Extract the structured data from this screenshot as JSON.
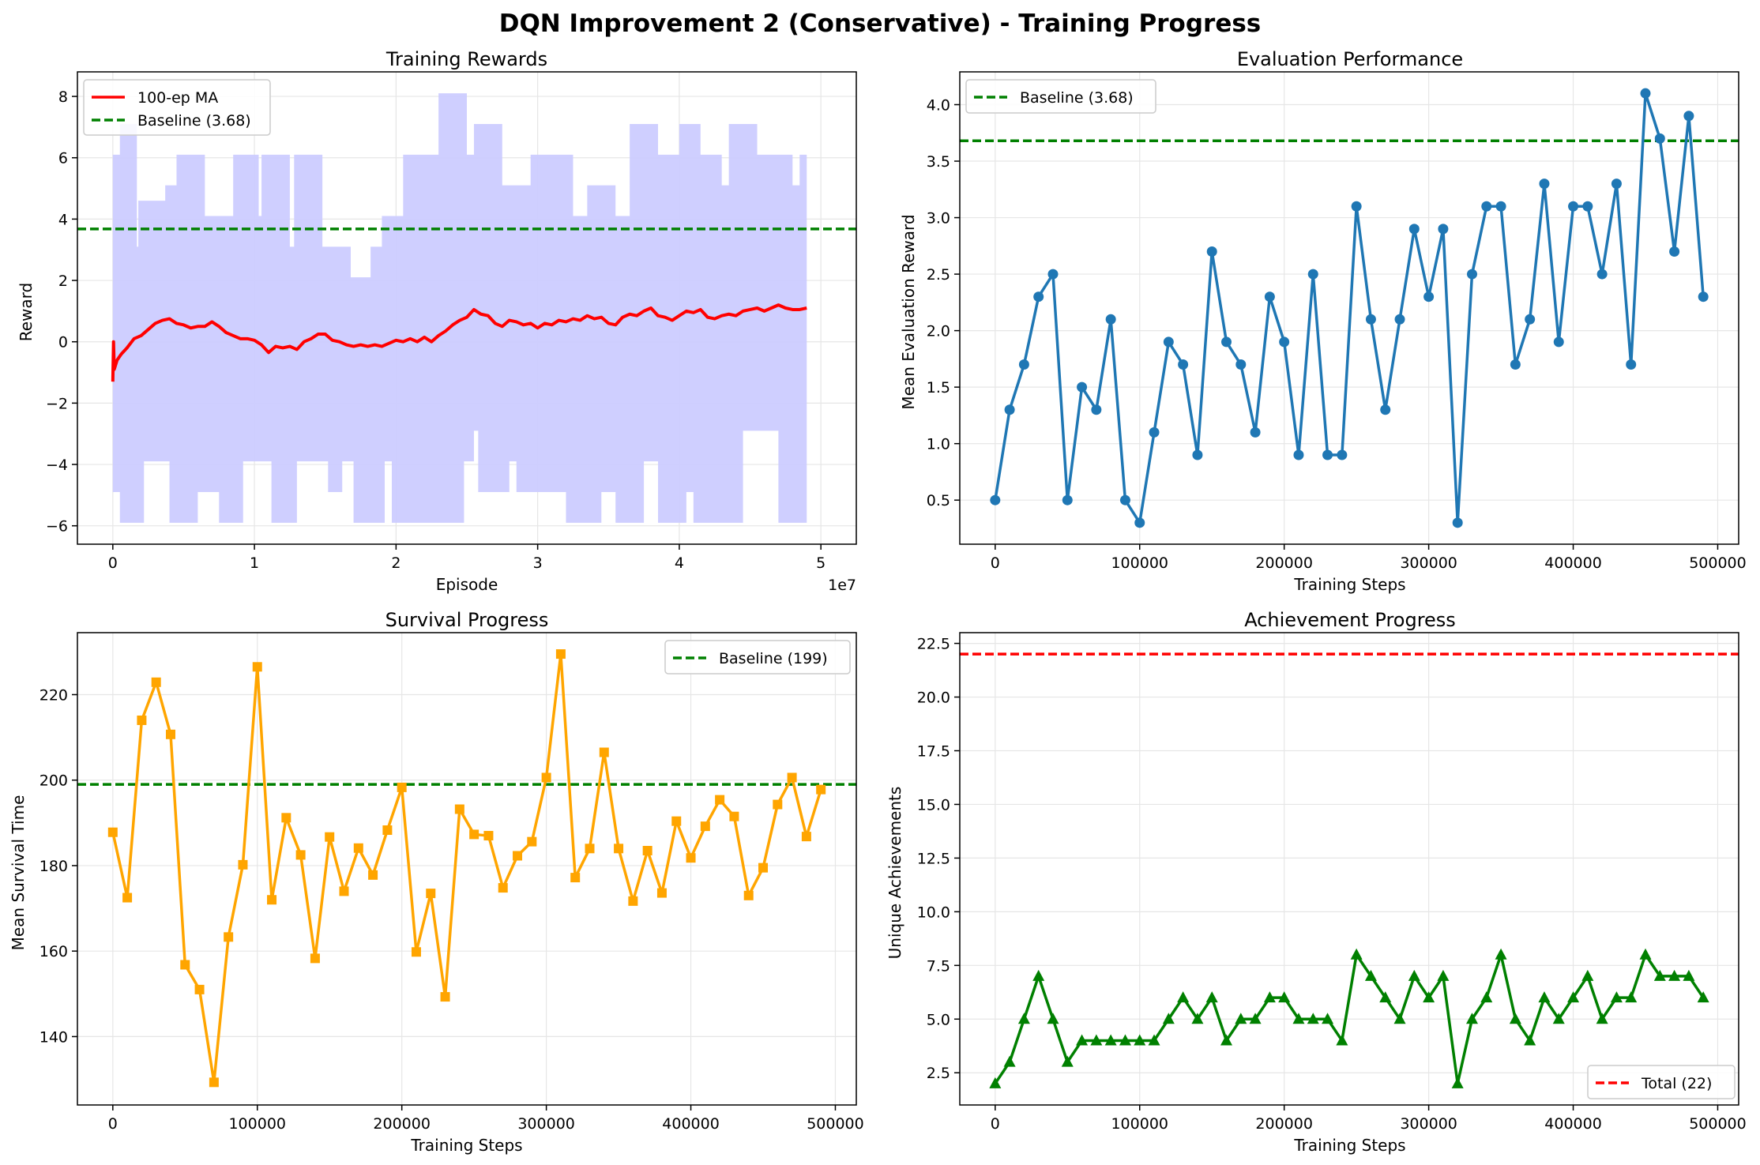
{
  "figure_title": "DQN Improvement 2 (Conservative) - Training Progress",
  "colors": {
    "ma_line": "#ff0000",
    "baseline": "#008000",
    "reward_band": "#ccccff",
    "eval_line": "#1f77b4",
    "survival_line": "#ffa500",
    "achievement_line": "#008000",
    "total_line": "#ff0000",
    "grid": "#e6e6e6"
  },
  "chart_data": [
    {
      "type": "area",
      "title": "Training Rewards",
      "xlabel": "Episode",
      "ylabel": "Reward",
      "x_offset_label": "1e7",
      "xlim": [
        -0.25,
        5.25
      ],
      "ylim": [
        -6.6,
        8.8
      ],
      "xticks": [
        0,
        1,
        2,
        3,
        4,
        5
      ],
      "yticks": [
        -6,
        -4,
        -2,
        0,
        2,
        4,
        6,
        8
      ],
      "grid": true,
      "legend": "top-left",
      "legend_entries": [
        "100-ep MA",
        "Baseline (3.68)"
      ],
      "baseline": 3.68,
      "episode_range": [
        0,
        4.9
      ],
      "band_upper": [
        [
          0.0,
          6.1
        ],
        [
          0.05,
          7.1
        ],
        [
          0.15,
          7.1
        ],
        [
          0.17,
          3.1
        ],
        [
          0.18,
          4.6
        ],
        [
          0.37,
          5.1
        ],
        [
          0.45,
          6.1
        ],
        [
          0.65,
          4.1
        ],
        [
          0.85,
          6.1
        ],
        [
          1.03,
          4.1
        ],
        [
          1.05,
          6.1
        ],
        [
          1.25,
          3.1
        ],
        [
          1.28,
          6.1
        ],
        [
          1.48,
          3.1
        ],
        [
          1.68,
          2.1
        ],
        [
          1.82,
          3.1
        ],
        [
          1.9,
          4.1
        ],
        [
          2.05,
          6.1
        ],
        [
          2.3,
          8.1
        ],
        [
          2.5,
          6.1
        ],
        [
          2.55,
          7.1
        ],
        [
          2.75,
          5.1
        ],
        [
          2.95,
          6.1
        ],
        [
          3.25,
          4.1
        ],
        [
          3.35,
          5.1
        ],
        [
          3.55,
          4.1
        ],
        [
          3.65,
          7.1
        ],
        [
          3.85,
          6.1
        ],
        [
          4.0,
          7.1
        ],
        [
          4.15,
          6.1
        ],
        [
          4.3,
          5.1
        ],
        [
          4.35,
          7.1
        ],
        [
          4.55,
          6.1
        ],
        [
          4.8,
          5.1
        ],
        [
          4.85,
          6.1
        ],
        [
          4.9,
          6.1
        ]
      ],
      "band_lower": [
        [
          0.0,
          -4.9
        ],
        [
          0.05,
          -5.9
        ],
        [
          0.22,
          -3.9
        ],
        [
          0.4,
          -5.9
        ],
        [
          0.6,
          -4.9
        ],
        [
          0.75,
          -5.9
        ],
        [
          0.92,
          -3.9
        ],
        [
          1.12,
          -5.9
        ],
        [
          1.3,
          -3.9
        ],
        [
          1.52,
          -4.9
        ],
        [
          1.62,
          -3.9
        ],
        [
          1.7,
          -5.9
        ],
        [
          1.92,
          -3.9
        ],
        [
          1.97,
          -5.9
        ],
        [
          2.48,
          -3.9
        ],
        [
          2.55,
          -2.9
        ],
        [
          2.58,
          -4.9
        ],
        [
          2.8,
          -3.9
        ],
        [
          2.85,
          -4.9
        ],
        [
          3.2,
          -5.9
        ],
        [
          3.45,
          -4.9
        ],
        [
          3.55,
          -5.9
        ],
        [
          3.75,
          -3.9
        ],
        [
          3.85,
          -5.9
        ],
        [
          4.05,
          -4.9
        ],
        [
          4.1,
          -5.9
        ],
        [
          4.45,
          -2.9
        ],
        [
          4.7,
          -5.9
        ],
        [
          4.9,
          -3.9
        ]
      ],
      "moving_average": [
        [
          0.0,
          -1.3
        ],
        [
          0.005,
          0.0
        ],
        [
          0.01,
          -0.9
        ],
        [
          0.03,
          -0.6
        ],
        [
          0.06,
          -0.4
        ],
        [
          0.1,
          -0.2
        ],
        [
          0.15,
          0.1
        ],
        [
          0.2,
          0.2
        ],
        [
          0.25,
          0.4
        ],
        [
          0.3,
          0.6
        ],
        [
          0.35,
          0.7
        ],
        [
          0.4,
          0.75
        ],
        [
          0.45,
          0.6
        ],
        [
          0.5,
          0.55
        ],
        [
          0.55,
          0.45
        ],
        [
          0.6,
          0.5
        ],
        [
          0.65,
          0.5
        ],
        [
          0.7,
          0.65
        ],
        [
          0.75,
          0.5
        ],
        [
          0.8,
          0.3
        ],
        [
          0.85,
          0.2
        ],
        [
          0.9,
          0.1
        ],
        [
          0.95,
          0.1
        ],
        [
          1.0,
          0.05
        ],
        [
          1.05,
          -0.1
        ],
        [
          1.1,
          -0.35
        ],
        [
          1.15,
          -0.15
        ],
        [
          1.2,
          -0.2
        ],
        [
          1.25,
          -0.15
        ],
        [
          1.3,
          -0.25
        ],
        [
          1.35,
          0.0
        ],
        [
          1.4,
          0.1
        ],
        [
          1.45,
          0.25
        ],
        [
          1.5,
          0.25
        ],
        [
          1.55,
          0.05
        ],
        [
          1.6,
          0.0
        ],
        [
          1.65,
          -0.1
        ],
        [
          1.7,
          -0.15
        ],
        [
          1.75,
          -0.1
        ],
        [
          1.8,
          -0.15
        ],
        [
          1.85,
          -0.1
        ],
        [
          1.9,
          -0.15
        ],
        [
          1.95,
          -0.05
        ],
        [
          2.0,
          0.05
        ],
        [
          2.05,
          0.0
        ],
        [
          2.1,
          0.1
        ],
        [
          2.15,
          0.0
        ],
        [
          2.2,
          0.15
        ],
        [
          2.25,
          0.0
        ],
        [
          2.3,
          0.2
        ],
        [
          2.35,
          0.35
        ],
        [
          2.4,
          0.55
        ],
        [
          2.45,
          0.7
        ],
        [
          2.5,
          0.8
        ],
        [
          2.55,
          1.05
        ],
        [
          2.6,
          0.9
        ],
        [
          2.65,
          0.85
        ],
        [
          2.7,
          0.6
        ],
        [
          2.75,
          0.5
        ],
        [
          2.8,
          0.7
        ],
        [
          2.85,
          0.65
        ],
        [
          2.9,
          0.55
        ],
        [
          2.95,
          0.6
        ],
        [
          3.0,
          0.45
        ],
        [
          3.05,
          0.6
        ],
        [
          3.1,
          0.55
        ],
        [
          3.15,
          0.7
        ],
        [
          3.2,
          0.65
        ],
        [
          3.25,
          0.75
        ],
        [
          3.3,
          0.7
        ],
        [
          3.35,
          0.85
        ],
        [
          3.4,
          0.75
        ],
        [
          3.45,
          0.8
        ],
        [
          3.5,
          0.6
        ],
        [
          3.55,
          0.55
        ],
        [
          3.6,
          0.8
        ],
        [
          3.65,
          0.9
        ],
        [
          3.7,
          0.85
        ],
        [
          3.75,
          1.0
        ],
        [
          3.8,
          1.1
        ],
        [
          3.85,
          0.85
        ],
        [
          3.9,
          0.8
        ],
        [
          3.95,
          0.7
        ],
        [
          4.0,
          0.85
        ],
        [
          4.05,
          1.0
        ],
        [
          4.1,
          0.95
        ],
        [
          4.15,
          1.05
        ],
        [
          4.2,
          0.8
        ],
        [
          4.25,
          0.75
        ],
        [
          4.3,
          0.85
        ],
        [
          4.35,
          0.9
        ],
        [
          4.4,
          0.85
        ],
        [
          4.45,
          1.0
        ],
        [
          4.5,
          1.05
        ],
        [
          4.55,
          1.1
        ],
        [
          4.6,
          1.0
        ],
        [
          4.65,
          1.1
        ],
        [
          4.7,
          1.2
        ],
        [
          4.75,
          1.1
        ],
        [
          4.8,
          1.05
        ],
        [
          4.85,
          1.05
        ],
        [
          4.9,
          1.1
        ]
      ]
    },
    {
      "type": "line",
      "title": "Evaluation Performance",
      "xlabel": "Training Steps",
      "ylabel": "Mean Evaluation Reward",
      "xlim": [
        -24500,
        514500
      ],
      "ylim": [
        0.11,
        4.29
      ],
      "xticks": [
        0,
        100000,
        200000,
        300000,
        400000,
        500000
      ],
      "yticks": [
        0.5,
        1.0,
        1.5,
        2.0,
        2.5,
        3.0,
        3.5,
        4.0
      ],
      "grid": true,
      "legend": "top-left",
      "legend_entries": [
        "Baseline (3.68)"
      ],
      "baseline": 3.68,
      "marker": "circle",
      "x": [
        0,
        10000,
        20000,
        30000,
        40000,
        50000,
        60000,
        70000,
        80000,
        90000,
        100000,
        110000,
        120000,
        130000,
        140000,
        150000,
        160000,
        170000,
        180000,
        190000,
        200000,
        210000,
        220000,
        230000,
        240000,
        250000,
        260000,
        270000,
        280000,
        290000,
        300000,
        310000,
        320000,
        330000,
        340000,
        350000,
        360000,
        370000,
        380000,
        390000,
        400000,
        410000,
        420000,
        430000,
        440000,
        450000,
        460000,
        470000,
        480000,
        490000
      ],
      "values": [
        0.5,
        1.3,
        1.7,
        2.3,
        2.5,
        0.5,
        1.5,
        1.3,
        2.1,
        0.5,
        0.3,
        1.1,
        1.9,
        1.7,
        0.9,
        2.7,
        1.9,
        1.7,
        1.1,
        2.3,
        1.9,
        0.9,
        2.5,
        0.9,
        0.9,
        3.1,
        2.1,
        1.3,
        2.1,
        2.9,
        2.3,
        2.9,
        0.3,
        2.5,
        3.1,
        3.1,
        1.7,
        2.1,
        3.3,
        1.9,
        3.1,
        3.1,
        2.5,
        3.3,
        1.7,
        4.1,
        3.7,
        2.7,
        3.9,
        2.3
      ]
    },
    {
      "type": "line",
      "title": "Survival Progress",
      "xlabel": "Training Steps",
      "ylabel": "Mean Survival Time",
      "xlim": [
        -24500,
        514500
      ],
      "ylim": [
        124.0,
        234.5
      ],
      "xticks": [
        0,
        100000,
        200000,
        300000,
        400000,
        500000
      ],
      "yticks": [
        140,
        160,
        180,
        200,
        220
      ],
      "grid": true,
      "legend": "top-right",
      "legend_entries": [
        "Baseline (199)"
      ],
      "baseline": 199,
      "marker": "square",
      "x": [
        0,
        10000,
        20000,
        30000,
        40000,
        50000,
        60000,
        70000,
        80000,
        90000,
        100000,
        110000,
        120000,
        130000,
        140000,
        150000,
        160000,
        170000,
        180000,
        190000,
        200000,
        210000,
        220000,
        230000,
        240000,
        250000,
        260000,
        270000,
        280000,
        290000,
        300000,
        310000,
        320000,
        330000,
        340000,
        350000,
        360000,
        370000,
        380000,
        390000,
        400000,
        410000,
        420000,
        430000,
        440000,
        450000,
        460000,
        470000,
        480000,
        490000
      ],
      "values": [
        187.8,
        172.5,
        214.0,
        222.9,
        210.7,
        156.8,
        151.0,
        129.3,
        163.3,
        180.2,
        226.5,
        172.0,
        191.2,
        182.5,
        158.3,
        186.7,
        174.0,
        184.1,
        177.8,
        188.3,
        198.3,
        159.8,
        173.5,
        149.3,
        193.2,
        187.3,
        187.0,
        174.8,
        182.3,
        185.6,
        200.6,
        229.5,
        177.2,
        184.0,
        206.5,
        184.0,
        171.7,
        183.5,
        173.6,
        190.4,
        181.8,
        189.2,
        195.4,
        191.5,
        173.0,
        179.5,
        194.3,
        200.6,
        186.8,
        197.8
      ]
    },
    {
      "type": "line",
      "title": "Achievement Progress",
      "xlabel": "Training Steps",
      "ylabel": "Unique Achievements",
      "xlim": [
        -24500,
        514500
      ],
      "ylim": [
        1.0,
        23.0
      ],
      "xticks": [
        0,
        100000,
        200000,
        300000,
        400000,
        500000
      ],
      "yticks": [
        2.5,
        5.0,
        7.5,
        10.0,
        12.5,
        15.0,
        17.5,
        20.0,
        22.5
      ],
      "grid": true,
      "legend": "bottom-right",
      "legend_entries": [
        "Total (22)"
      ],
      "baseline": 22,
      "marker": "triangle",
      "x": [
        0,
        10000,
        20000,
        30000,
        40000,
        50000,
        60000,
        70000,
        80000,
        90000,
        100000,
        110000,
        120000,
        130000,
        140000,
        150000,
        160000,
        170000,
        180000,
        190000,
        200000,
        210000,
        220000,
        230000,
        240000,
        250000,
        260000,
        270000,
        280000,
        290000,
        300000,
        310000,
        320000,
        330000,
        340000,
        350000,
        360000,
        370000,
        380000,
        390000,
        400000,
        410000,
        420000,
        430000,
        440000,
        450000,
        460000,
        470000,
        480000,
        490000
      ],
      "values": [
        2,
        3,
        5,
        7,
        5,
        3,
        4,
        4,
        4,
        4,
        4,
        4,
        5,
        6,
        5,
        6,
        4,
        5,
        5,
        6,
        6,
        5,
        5,
        5,
        4,
        8,
        7,
        6,
        5,
        7,
        6,
        7,
        2,
        5,
        6,
        8,
        5,
        4,
        6,
        5,
        6,
        7,
        5,
        6,
        6,
        8,
        7,
        7,
        7,
        6
      ]
    }
  ]
}
